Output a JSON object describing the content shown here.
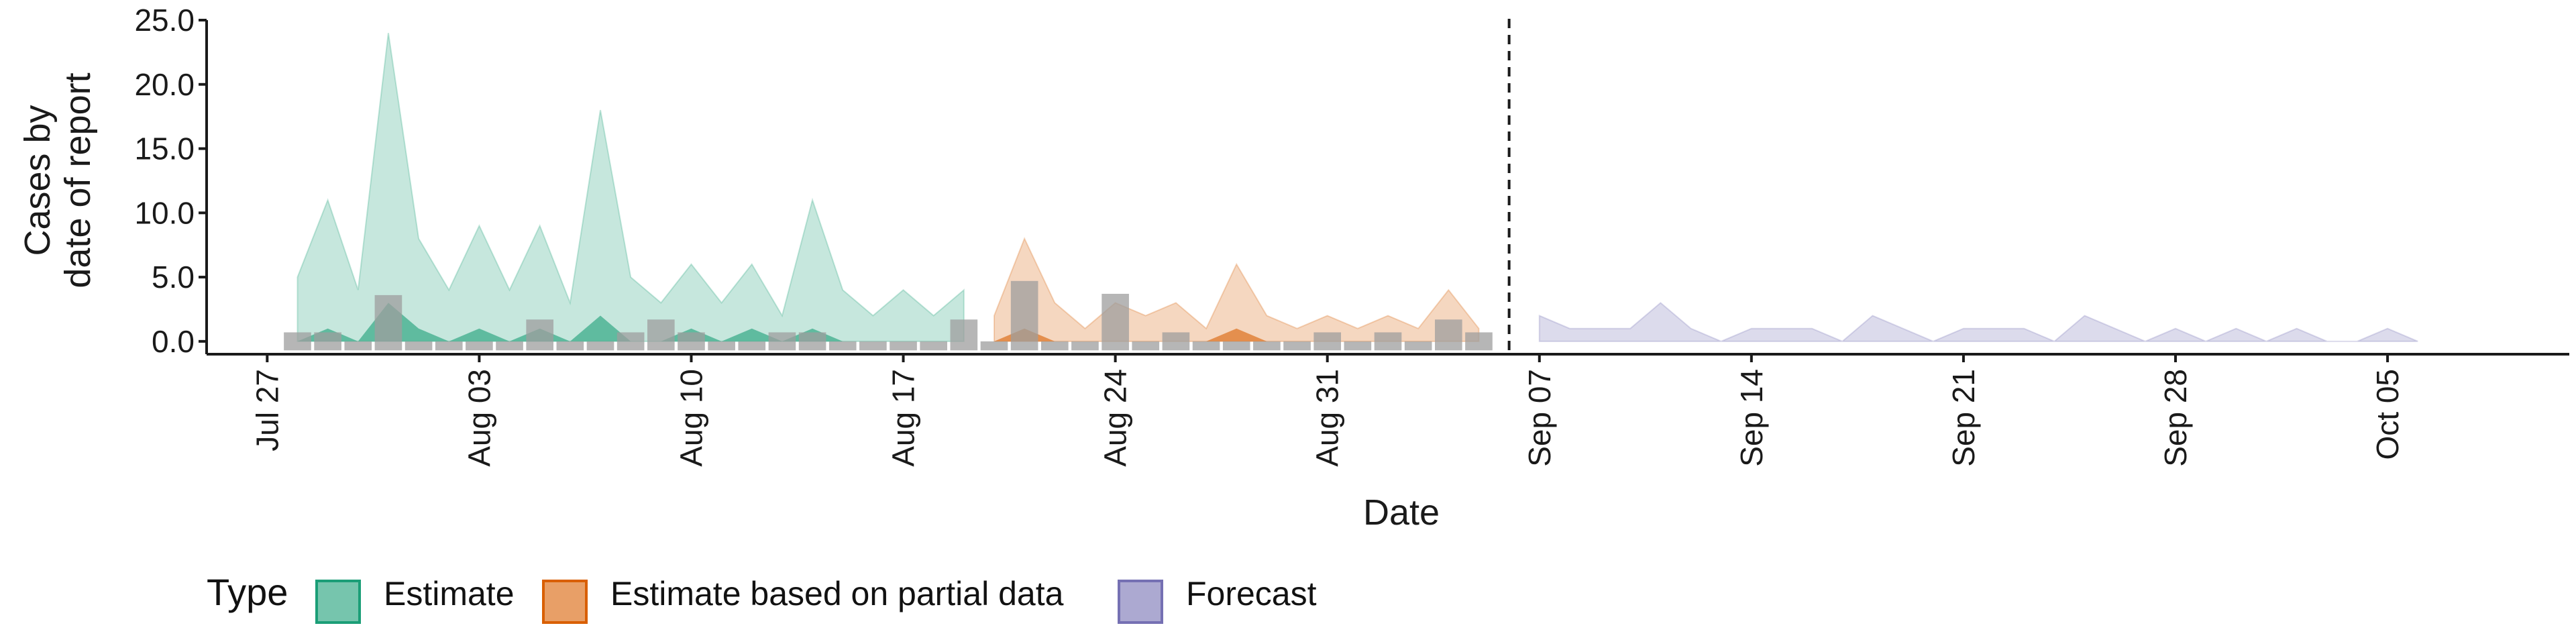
{
  "chart_data": {
    "type": "area",
    "title": "",
    "xlabel": "Date",
    "ylabel_lines": [
      "Cases by",
      "date of report"
    ],
    "x_range": [
      "2020-07-25",
      "2020-10-11"
    ],
    "ylim": [
      -1,
      25
    ],
    "yticks": [
      0,
      5,
      10,
      15,
      20,
      25
    ],
    "ytick_labels": [
      "0.0",
      "5.0",
      "10.0",
      "15.0",
      "20.0",
      "25.0"
    ],
    "xticks": [
      "2020-07-27",
      "2020-08-03",
      "2020-08-10",
      "2020-08-17",
      "2020-08-24",
      "2020-08-31",
      "2020-09-07",
      "2020-09-14",
      "2020-09-21",
      "2020-09-28",
      "2020-10-05"
    ],
    "xtick_labels": [
      "Jul 27",
      "Aug 03",
      "Aug 10",
      "Aug 17",
      "Aug 24",
      "Aug 31",
      "Sep 07",
      "Sep 14",
      "Sep 21",
      "Sep 28",
      "Oct 05"
    ],
    "vline_date": "2020-09-06",
    "grid": false,
    "legend": {
      "position": "bottom",
      "title": "Type",
      "items": [
        {
          "label": "Estimate",
          "color": "#1b9e77"
        },
        {
          "label": "Estimate based on partial data",
          "color": "#d95f02"
        },
        {
          "label": "Forecast",
          "color": "#7570b3"
        }
      ]
    },
    "series": [
      {
        "name": "Estimate",
        "color": "#1b9e77",
        "start": "2020-07-28",
        "upper_outer": [
          5,
          11,
          4,
          24,
          8,
          4,
          9,
          4,
          9,
          3,
          18,
          5,
          3,
          6,
          3,
          6,
          2,
          11,
          4,
          2,
          4,
          2,
          4
        ],
        "upper_inner": [
          0,
          1,
          0,
          3,
          1,
          0,
          1,
          0,
          1,
          0,
          2,
          0,
          0,
          1,
          0,
          1,
          0,
          1,
          0,
          0,
          0,
          0,
          0
        ]
      },
      {
        "name": "Estimate based on partial data",
        "color": "#d95f02",
        "start": "2020-08-20",
        "upper_outer": [
          2,
          8,
          3,
          1,
          3,
          2,
          3,
          1,
          6,
          2,
          1,
          2,
          1,
          2,
          1,
          4,
          1
        ],
        "upper_inner": [
          0,
          1,
          0,
          0,
          0,
          0,
          0,
          0,
          1,
          0,
          0,
          0,
          0,
          0,
          0,
          0,
          0
        ]
      },
      {
        "name": "Forecast",
        "color": "#7570b3",
        "start": "2020-09-07",
        "upper_outer": [
          2,
          1,
          1,
          1,
          3,
          1,
          0,
          1,
          1,
          1,
          0,
          2,
          1,
          0,
          1,
          1,
          1,
          0,
          2,
          1,
          0,
          1,
          0,
          1,
          0,
          1,
          0,
          0,
          1,
          0
        ],
        "upper_inner": []
      }
    ],
    "reported_cases": {
      "color": "#9e9e9e",
      "start": "2020-07-28",
      "values": [
        0.7,
        0.7,
        0,
        3.6,
        0,
        0,
        0,
        0,
        1.7,
        0,
        0,
        0.7,
        1.7,
        0.7,
        0,
        0,
        0.7,
        0.7,
        0,
        0,
        0,
        0,
        1.7,
        0,
        4.7,
        0,
        0,
        3.7,
        0,
        0.7,
        0,
        0,
        0,
        0,
        0.7,
        0,
        0.7,
        0,
        1.7,
        0.7
      ]
    }
  }
}
